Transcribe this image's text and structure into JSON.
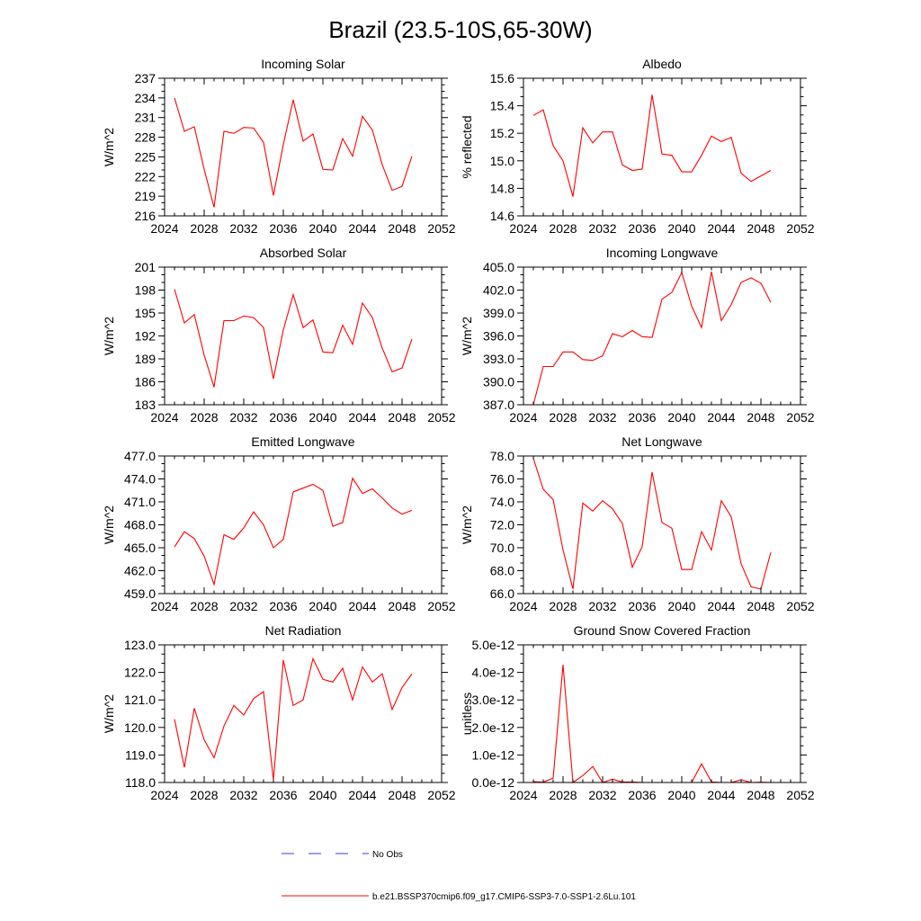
{
  "figure": {
    "title": "Brazil (23.5-10S,65-30W)",
    "legend": [
      {
        "label": "No Obs",
        "color": "#3b3bd6",
        "dash": true
      },
      {
        "label": "b.e21.BSSP370cmip6.f09_g17.CMIP6-SSP3-7.0-SSP1-2.6Lu.101",
        "color": "#ff0000",
        "dash": false
      }
    ]
  },
  "chart_data": [
    {
      "type": "line",
      "title": "Incoming Solar",
      "ylabel": "W/m^2",
      "xlim": [
        2024,
        2052
      ],
      "ylim": [
        216,
        237
      ],
      "xticks": [
        2024,
        2028,
        2032,
        2036,
        2040,
        2044,
        2048,
        2052
      ],
      "yticks": [
        216,
        219,
        222,
        225,
        228,
        231,
        234,
        237
      ],
      "ytick_labels": [
        "216",
        "219",
        "222",
        "225",
        "228",
        "231",
        "234",
        "237"
      ],
      "x": [
        2025,
        2026,
        2027,
        2028,
        2029,
        2030,
        2031,
        2032,
        2033,
        2034,
        2035,
        2036,
        2037,
        2038,
        2039,
        2040,
        2041,
        2042,
        2043,
        2044,
        2045,
        2046,
        2047,
        2048,
        2049
      ],
      "series": [
        {
          "color": "#ff0000",
          "values": [
            234.0,
            228.9,
            229.6,
            223.1,
            217.3,
            228.9,
            228.6,
            229.5,
            229.4,
            227.2,
            219.1,
            226.9,
            233.7,
            227.4,
            228.5,
            223.1,
            223.0,
            227.8,
            225.1,
            231.2,
            229.1,
            223.8,
            219.9,
            220.5,
            225.1
          ]
        }
      ]
    },
    {
      "type": "line",
      "title": "Albedo",
      "ylabel": "% reflected",
      "xlim": [
        2024,
        2052
      ],
      "ylim": [
        14.6,
        15.6
      ],
      "xticks": [
        2024,
        2028,
        2032,
        2036,
        2040,
        2044,
        2048,
        2052
      ],
      "yticks": [
        14.6,
        14.8,
        15.0,
        15.2,
        15.4,
        15.6
      ],
      "ytick_labels": [
        "14.6",
        "14.8",
        "15.0",
        "15.2",
        "15.4",
        "15.6"
      ],
      "x": [
        2025,
        2026,
        2027,
        2028,
        2029,
        2030,
        2031,
        2032,
        2033,
        2034,
        2035,
        2036,
        2037,
        2038,
        2039,
        2040,
        2041,
        2042,
        2043,
        2044,
        2045,
        2046,
        2047,
        2048,
        2049
      ],
      "series": [
        {
          "color": "#ff0000",
          "values": [
            15.33,
            15.37,
            15.11,
            15.0,
            14.74,
            15.24,
            15.13,
            15.21,
            15.21,
            14.97,
            14.93,
            14.94,
            15.48,
            15.05,
            15.04,
            14.92,
            14.92,
            15.04,
            15.18,
            15.14,
            15.17,
            14.91,
            14.85,
            14.89,
            14.93
          ]
        }
      ]
    },
    {
      "type": "line",
      "title": "Absorbed Solar",
      "ylabel": "W/m^2",
      "xlim": [
        2024,
        2052
      ],
      "ylim": [
        183,
        201
      ],
      "xticks": [
        2024,
        2028,
        2032,
        2036,
        2040,
        2044,
        2048,
        2052
      ],
      "yticks": [
        183,
        186,
        189,
        192,
        195,
        198,
        201
      ],
      "ytick_labels": [
        "183",
        "186",
        "189",
        "192",
        "195",
        "198",
        "201"
      ],
      "x": [
        2025,
        2026,
        2027,
        2028,
        2029,
        2030,
        2031,
        2032,
        2033,
        2034,
        2035,
        2036,
        2037,
        2038,
        2039,
        2040,
        2041,
        2042,
        2043,
        2044,
        2045,
        2046,
        2047,
        2048,
        2049
      ],
      "series": [
        {
          "color": "#ff0000",
          "values": [
            198.1,
            193.7,
            194.8,
            189.5,
            185.3,
            194.0,
            194.0,
            194.6,
            194.4,
            193.1,
            186.4,
            192.8,
            197.4,
            193.1,
            194.1,
            189.9,
            189.8,
            193.4,
            190.9,
            196.3,
            194.4,
            190.4,
            187.3,
            187.8,
            191.6
          ]
        }
      ]
    },
    {
      "type": "line",
      "title": "Incoming Longwave",
      "ylabel": "W/m^2",
      "xlim": [
        2024,
        2052
      ],
      "ylim": [
        387.0,
        405.0
      ],
      "xticks": [
        2024,
        2028,
        2032,
        2036,
        2040,
        2044,
        2048,
        2052
      ],
      "yticks": [
        387,
        390,
        393,
        396,
        399,
        402,
        405
      ],
      "ytick_labels": [
        "387.0",
        "390.0",
        "393.0",
        "396.0",
        "399.0",
        "402.0",
        "405.0"
      ],
      "x": [
        2025,
        2026,
        2027,
        2028,
        2029,
        2030,
        2031,
        2032,
        2033,
        2034,
        2035,
        2036,
        2037,
        2038,
        2039,
        2040,
        2041,
        2042,
        2043,
        2044,
        2045,
        2046,
        2047,
        2048,
        2049
      ],
      "series": [
        {
          "color": "#ff0000",
          "values": [
            387.0,
            392.0,
            392.0,
            393.9,
            393.9,
            392.9,
            392.8,
            393.4,
            396.3,
            395.9,
            396.7,
            395.9,
            395.8,
            400.8,
            401.7,
            404.3,
            399.9,
            397.1,
            404.4,
            398.0,
            400.1,
            403.0,
            403.6,
            402.9,
            400.4
          ]
        }
      ]
    },
    {
      "type": "line",
      "title": "Emitted Longwave",
      "ylabel": "W/m^2",
      "xlim": [
        2024,
        2052
      ],
      "ylim": [
        459.0,
        477.0
      ],
      "xticks": [
        2024,
        2028,
        2032,
        2036,
        2040,
        2044,
        2048,
        2052
      ],
      "yticks": [
        459,
        462,
        465,
        468,
        471,
        474,
        477
      ],
      "ytick_labels": [
        "459.0",
        "462.0",
        "465.0",
        "468.0",
        "471.0",
        "474.0",
        "477.0"
      ],
      "x": [
        2025,
        2026,
        2027,
        2028,
        2029,
        2030,
        2031,
        2032,
        2033,
        2034,
        2035,
        2036,
        2037,
        2038,
        2039,
        2040,
        2041,
        2042,
        2043,
        2044,
        2045,
        2046,
        2047,
        2048,
        2049
      ],
      "series": [
        {
          "color": "#ff0000",
          "values": [
            465.1,
            467.1,
            466.2,
            463.9,
            460.2,
            466.7,
            466.1,
            467.6,
            469.7,
            468.0,
            465.0,
            466.1,
            472.3,
            472.8,
            473.3,
            472.5,
            467.8,
            468.3,
            474.1,
            472.1,
            472.7,
            471.5,
            470.2,
            469.4,
            469.9
          ]
        }
      ]
    },
    {
      "type": "line",
      "title": "Net Longwave",
      "ylabel": "W/m^2",
      "xlim": [
        2024,
        2052
      ],
      "ylim": [
        66.0,
        78.0
      ],
      "xticks": [
        2024,
        2028,
        2032,
        2036,
        2040,
        2044,
        2048,
        2052
      ],
      "yticks": [
        66,
        68,
        70,
        72,
        74,
        76,
        78
      ],
      "ytick_labels": [
        "66.0",
        "68.0",
        "70.0",
        "72.0",
        "74.0",
        "76.0",
        "78.0"
      ],
      "x": [
        2025,
        2026,
        2027,
        2028,
        2029,
        2030,
        2031,
        2032,
        2033,
        2034,
        2035,
        2036,
        2037,
        2038,
        2039,
        2040,
        2041,
        2042,
        2043,
        2044,
        2045,
        2046,
        2047,
        2048,
        2049
      ],
      "series": [
        {
          "color": "#ff0000",
          "values": [
            77.8,
            75.1,
            74.2,
            69.8,
            66.4,
            73.9,
            73.2,
            74.1,
            73.4,
            72.1,
            68.3,
            70.1,
            76.6,
            72.2,
            71.7,
            68.1,
            68.1,
            71.4,
            69.8,
            74.1,
            72.7,
            68.6,
            66.6,
            66.4,
            69.6
          ]
        }
      ]
    },
    {
      "type": "line",
      "title": "Net Radiation",
      "ylabel": "W/m^2",
      "xlim": [
        2024,
        2052
      ],
      "ylim": [
        118.0,
        123.0
      ],
      "xticks": [
        2024,
        2028,
        2032,
        2036,
        2040,
        2044,
        2048,
        2052
      ],
      "yticks": [
        118,
        119,
        120,
        121,
        122,
        123
      ],
      "ytick_labels": [
        "118.0",
        "119.0",
        "120.0",
        "121.0",
        "122.0",
        "123.0"
      ],
      "x": [
        2025,
        2026,
        2027,
        2028,
        2029,
        2030,
        2031,
        2032,
        2033,
        2034,
        2035,
        2036,
        2037,
        2038,
        2039,
        2040,
        2041,
        2042,
        2043,
        2044,
        2045,
        2046,
        2047,
        2048,
        2049
      ],
      "series": [
        {
          "color": "#ff0000",
          "values": [
            120.3,
            118.55,
            120.7,
            119.55,
            118.9,
            120.05,
            120.8,
            120.45,
            121.05,
            121.3,
            118.1,
            122.45,
            120.8,
            121.0,
            122.5,
            121.75,
            121.65,
            122.15,
            121.0,
            122.2,
            121.65,
            121.95,
            120.65,
            121.45,
            121.95
          ]
        }
      ]
    },
    {
      "type": "line",
      "title": "Ground Snow Covered Fraction",
      "ylabel": "unitless",
      "xlim": [
        2024,
        2052
      ],
      "ylim": [
        0,
        5e-12
      ],
      "xticks": [
        2024,
        2028,
        2032,
        2036,
        2040,
        2044,
        2048,
        2052
      ],
      "yticks": [
        0,
        1e-12,
        2e-12,
        3e-12,
        4e-12,
        5e-12
      ],
      "ytick_labels": [
        "0.0e-12",
        "1.0e-12",
        "2.0e-12",
        "3.0e-12",
        "4.0e-12",
        "5.0e-12"
      ],
      "x": [
        2025,
        2026,
        2027,
        2028,
        2029,
        2030,
        2031,
        2032,
        2033,
        2034,
        2035,
        2036,
        2037,
        2038,
        2039,
        2040,
        2041,
        2042,
        2043,
        2044,
        2045,
        2046,
        2047,
        2048,
        2049
      ],
      "series": [
        {
          "color": "#ff0000",
          "values": [
            3e-14,
            1e-14,
            1.6e-13,
            4.28e-12,
            0.0,
            2.5e-13,
            5.8e-13,
            0.0,
            1.2e-13,
            2e-14,
            2e-14,
            0.0,
            0.0,
            0.0,
            0.0,
            0.0,
            0.0,
            6.8e-13,
            2e-14,
            0.0,
            0.0,
            1e-13,
            0.0,
            1e-14,
            0.0
          ]
        }
      ]
    }
  ]
}
